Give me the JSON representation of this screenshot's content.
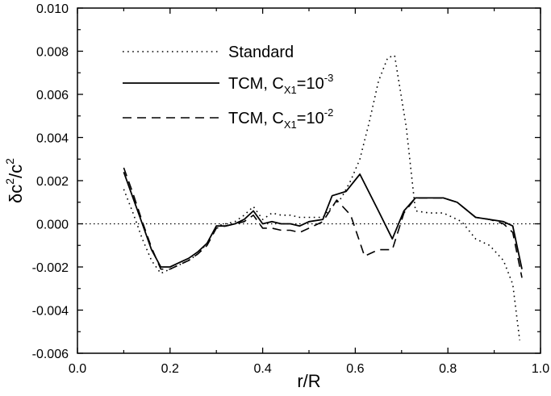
{
  "chart_data": {
    "type": "line",
    "title": "",
    "xlabel": "r/R",
    "ylabel": {
      "base1": "δc",
      "sup1": "2",
      "mid": "/c",
      "sup2": "2"
    },
    "xlim": [
      0.0,
      1.0
    ],
    "ylim": [
      -0.006,
      0.01
    ],
    "xticks": [
      "0.0",
      "0.2",
      "0.4",
      "0.6",
      "0.8",
      "1.0"
    ],
    "yticks": [
      "-0.006",
      "-0.004",
      "-0.002",
      "0.000",
      "0.002",
      "0.004",
      "0.006",
      "0.008",
      "0.010"
    ],
    "reference_line": {
      "y": 0.0,
      "style": "dotted"
    },
    "legend_position": "top-left",
    "series": [
      {
        "name": "Standard",
        "legend": {
          "text": "Standard"
        },
        "style": "dotted",
        "x": [
          0.1,
          0.12,
          0.14,
          0.16,
          0.18,
          0.2,
          0.22,
          0.24,
          0.26,
          0.28,
          0.3,
          0.32,
          0.34,
          0.36,
          0.38,
          0.4,
          0.42,
          0.44,
          0.46,
          0.48,
          0.5,
          0.53,
          0.55,
          0.57,
          0.59,
          0.61,
          0.63,
          0.65,
          0.67,
          0.685,
          0.71,
          0.73,
          0.76,
          0.79,
          0.83,
          0.86,
          0.89,
          0.92,
          0.94,
          0.955
        ],
        "y": [
          0.0016,
          0.0005,
          -0.0007,
          -0.0017,
          -0.0023,
          -0.0021,
          -0.0019,
          -0.0017,
          -0.0014,
          -0.0009,
          -0.0001,
          0.0,
          0.0001,
          0.0004,
          0.0008,
          0.0002,
          0.0005,
          0.0004,
          0.0004,
          0.0003,
          0.0003,
          0.0003,
          0.0008,
          0.0012,
          0.002,
          0.003,
          0.0047,
          0.0066,
          0.0077,
          0.0078,
          0.0045,
          0.0006,
          0.0005,
          0.0005,
          0.0001,
          -0.0007,
          -0.001,
          -0.0017,
          -0.0028,
          -0.0054
        ]
      },
      {
        "name": "TCM, C_X1=10^-3",
        "legend": {
          "pre": "TCM, C",
          "sub": "X1",
          "mid": "=10",
          "sup": "-3"
        },
        "style": "solid",
        "x": [
          0.1,
          0.12,
          0.14,
          0.16,
          0.18,
          0.2,
          0.22,
          0.24,
          0.26,
          0.28,
          0.3,
          0.32,
          0.34,
          0.36,
          0.38,
          0.4,
          0.42,
          0.44,
          0.46,
          0.48,
          0.5,
          0.53,
          0.55,
          0.58,
          0.61,
          0.65,
          0.68,
          0.705,
          0.73,
          0.76,
          0.79,
          0.82,
          0.86,
          0.89,
          0.92,
          0.94,
          0.96
        ],
        "y": [
          0.0024,
          0.0012,
          0.0,
          -0.0012,
          -0.002,
          -0.002,
          -0.0018,
          -0.0016,
          -0.0013,
          -0.0009,
          -0.0001,
          -0.0001,
          0.0,
          0.0002,
          0.0006,
          0.0,
          0.0001,
          0.0,
          0.0,
          -0.0001,
          0.0001,
          0.0002,
          0.0013,
          0.0015,
          0.0023,
          0.0006,
          -0.0007,
          0.0006,
          0.0012,
          0.0012,
          0.0012,
          0.001,
          0.0003,
          0.0002,
          0.0001,
          -0.0001,
          -0.0021
        ]
      },
      {
        "name": "TCM, C_X1=10^-2",
        "legend": {
          "pre": "TCM, C",
          "sub": "X1",
          "mid": "=10",
          "sup": "-2"
        },
        "style": "dashed",
        "x": [
          0.1,
          0.12,
          0.14,
          0.16,
          0.18,
          0.2,
          0.22,
          0.24,
          0.26,
          0.28,
          0.3,
          0.32,
          0.34,
          0.36,
          0.38,
          0.4,
          0.42,
          0.44,
          0.46,
          0.48,
          0.5,
          0.53,
          0.56,
          0.59,
          0.62,
          0.65,
          0.68,
          0.705,
          0.73,
          0.76,
          0.79,
          0.82,
          0.86,
          0.89,
          0.92,
          0.94,
          0.96
        ],
        "y": [
          0.0026,
          0.0014,
          0.0001,
          -0.0011,
          -0.0021,
          -0.0021,
          -0.0019,
          -0.0017,
          -0.0014,
          -0.001,
          -0.0002,
          -0.0001,
          0.0,
          0.0001,
          0.0004,
          -0.0002,
          -0.0002,
          -0.0003,
          -0.0003,
          -0.0004,
          -0.0002,
          0.0001,
          0.0011,
          0.0004,
          -0.0015,
          -0.0012,
          -0.0012,
          0.0005,
          0.0012,
          0.0012,
          0.0012,
          0.001,
          0.0003,
          0.0002,
          0.0,
          -0.0004,
          -0.0025
        ]
      }
    ]
  }
}
